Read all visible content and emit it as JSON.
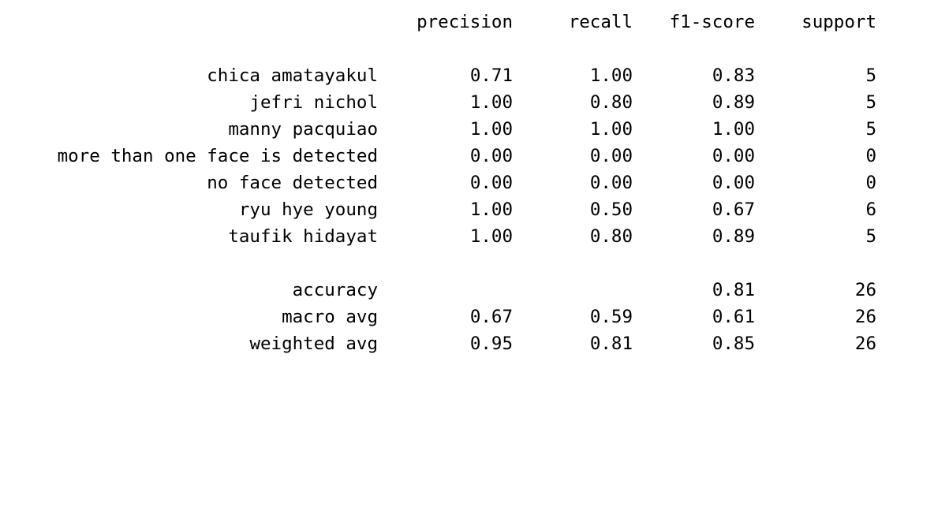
{
  "header": {
    "precision": "precision",
    "recall": "recall",
    "f1_score": "f1-score",
    "support": "support"
  },
  "classes": [
    {
      "label": "chica amatayakul",
      "precision": "0.71",
      "recall": "1.00",
      "f1_score": "0.83",
      "support": "5"
    },
    {
      "label": "jefri nichol",
      "precision": "1.00",
      "recall": "0.80",
      "f1_score": "0.89",
      "support": "5"
    },
    {
      "label": "manny pacquiao",
      "precision": "1.00",
      "recall": "1.00",
      "f1_score": "1.00",
      "support": "5"
    },
    {
      "label": "more than one face is detected",
      "precision": "0.00",
      "recall": "0.00",
      "f1_score": "0.00",
      "support": "0"
    },
    {
      "label": "no face detected",
      "precision": "0.00",
      "recall": "0.00",
      "f1_score": "0.00",
      "support": "0"
    },
    {
      "label": "ryu hye young",
      "precision": "1.00",
      "recall": "0.50",
      "f1_score": "0.67",
      "support": "6"
    },
    {
      "label": "taufik hidayat",
      "precision": "1.00",
      "recall": "0.80",
      "f1_score": "0.89",
      "support": "5"
    }
  ],
  "summary": [
    {
      "label": "accuracy",
      "precision": "",
      "recall": "",
      "f1_score": "0.81",
      "support": "26"
    },
    {
      "label": "macro avg",
      "precision": "0.67",
      "recall": "0.59",
      "f1_score": "0.61",
      "support": "26"
    },
    {
      "label": "weighted avg",
      "precision": "0.95",
      "recall": "0.81",
      "f1_score": "0.85",
      "support": "26"
    }
  ]
}
